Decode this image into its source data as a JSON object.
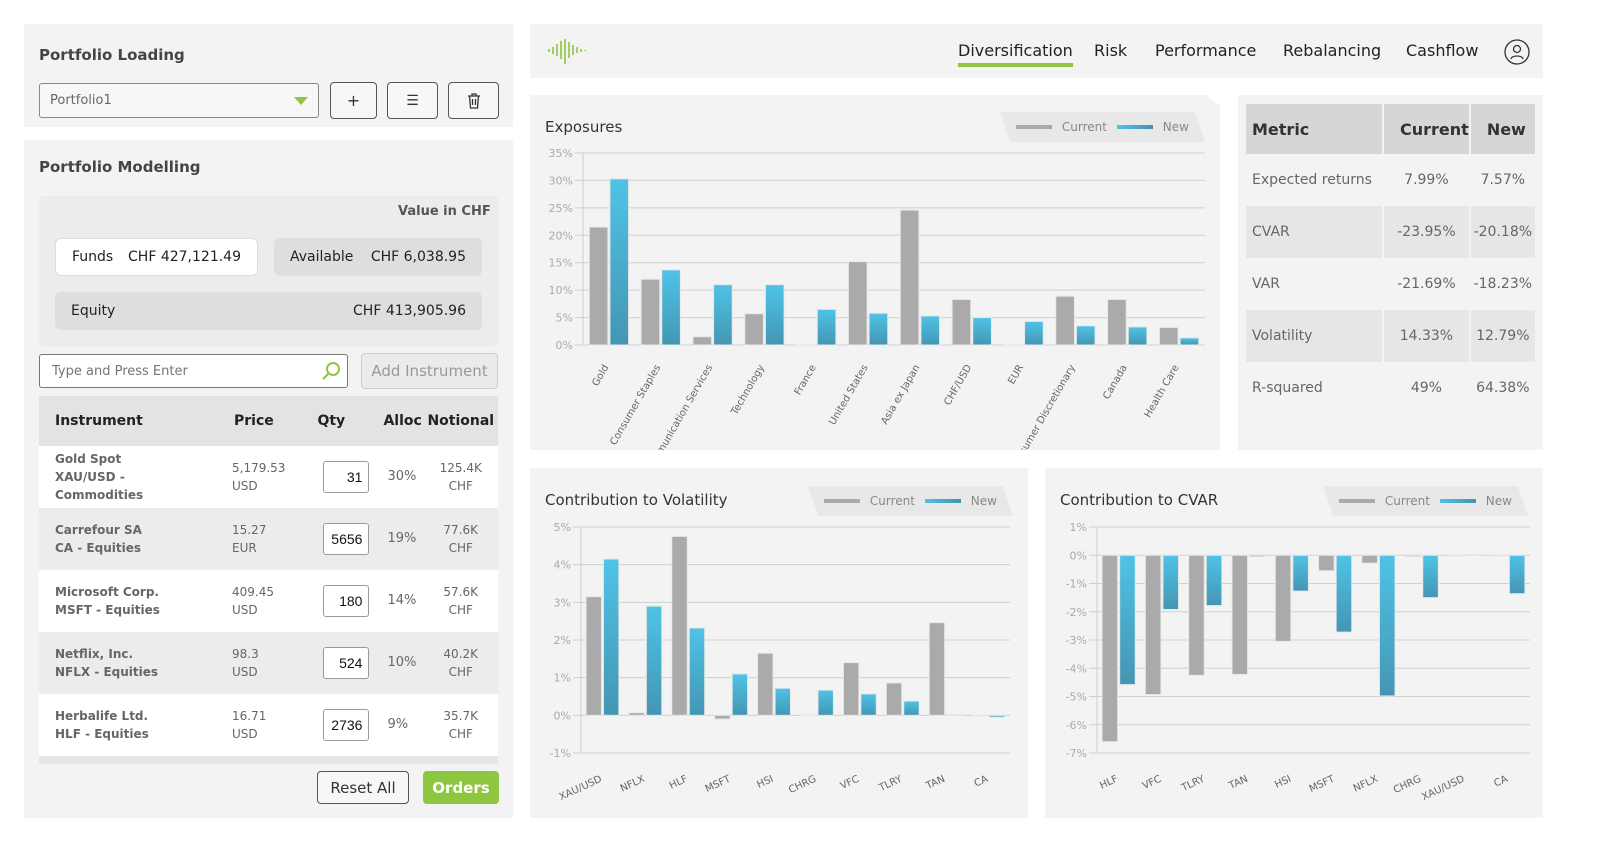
{
  "loading": {
    "title": "Portfolio Loading",
    "selected": "Portfolio1"
  },
  "modelling": {
    "title": "Portfolio Modelling",
    "value_label": "Value in CHF",
    "funds_label": "Funds",
    "funds_value": "CHF 427,121.49",
    "available_label": "Available",
    "available_value": "CHF 6,038.95",
    "equity_label": "Equity",
    "equity_value": "CHF 413,905.96",
    "search_placeholder": "Type and Press Enter",
    "add_label": "Add Instrument",
    "columns": [
      "Instrument",
      "Price",
      "Qty",
      "Alloc",
      "Notional"
    ],
    "rows": [
      {
        "name": "Gold Spot",
        "sub": "XAU/USD - Commodities",
        "price": "5,179.53",
        "ccy": "USD",
        "qty": "31",
        "alloc": "30%",
        "notional": "125.4K",
        "nccy": "CHF"
      },
      {
        "name": "Carrefour SA",
        "sub": "CA - Equities",
        "price": "15.27",
        "ccy": "EUR",
        "qty": "5656",
        "alloc": "19%",
        "notional": "77.6K",
        "nccy": "CHF"
      },
      {
        "name": "Microsoft Corp.",
        "sub": "MSFT - Equities",
        "price": "409.45",
        "ccy": "USD",
        "qty": "180",
        "alloc": "14%",
        "notional": "57.6K",
        "nccy": "CHF"
      },
      {
        "name": "Netflix, Inc.",
        "sub": "NFLX - Equities",
        "price": "98.3",
        "ccy": "USD",
        "qty": "524",
        "alloc": "10%",
        "notional": "40.2K",
        "nccy": "CHF"
      },
      {
        "name": "Herbalife Ltd.",
        "sub": "HLF - Equities",
        "price": "16.71",
        "ccy": "USD",
        "qty": "2736",
        "alloc": "9%",
        "notional": "35.7K",
        "nccy": "CHF"
      }
    ],
    "reset_label": "Reset All",
    "orders_label": "Orders"
  },
  "nav": {
    "tabs": [
      "Diversification",
      "Risk",
      "Performance",
      "Rebalancing",
      "Cashflow"
    ],
    "active": "Diversification"
  },
  "colors": {
    "accent": "#8dc63f",
    "current": "#aaaaaa",
    "new": "#4aaed0"
  },
  "legend": {
    "current": "Current",
    "new": "New"
  },
  "metrics": {
    "columns": [
      "Metric",
      "Current",
      "New"
    ],
    "rows": [
      [
        "Expected returns",
        "7.99%",
        "7.57%"
      ],
      [
        "CVAR",
        "-23.95%",
        "-20.18%"
      ],
      [
        "VAR",
        "-21.69%",
        "-18.23%"
      ],
      [
        "Volatility",
        "14.33%",
        "12.79%"
      ],
      [
        "R-squared",
        "49%",
        "64.38%"
      ]
    ]
  },
  "chart_data": [
    {
      "type": "bar",
      "title": "Exposures",
      "categories": [
        "Gold",
        "Consumer Staples",
        "Communication Services",
        "Technology",
        "France",
        "United States",
        "Asia ex Japan",
        "CHF/USD",
        "EUR",
        "Consumer Discretionary",
        "Canada",
        "Health Care"
      ],
      "series": [
        {
          "name": "Current",
          "values": [
            21.5,
            12,
            1.5,
            5.7,
            0,
            15.2,
            24.6,
            8.3,
            0,
            8.9,
            8.3,
            3.2
          ]
        },
        {
          "name": "New",
          "values": [
            30.3,
            13.7,
            11,
            11,
            6.5,
            5.8,
            5.3,
            5,
            4.3,
            3.5,
            3.3,
            1.3
          ]
        }
      ],
      "ylim": [
        0,
        35
      ],
      "yticks": [
        "0%",
        "5%",
        "10%",
        "15%",
        "20%",
        "25%",
        "30%",
        "35%"
      ],
      "grid": true,
      "legend": "top-right"
    },
    {
      "type": "bar",
      "title": "Contribution to Volatility",
      "categories": [
        "XAU/USD",
        "NFLX",
        "HLF",
        "MSFT",
        "HSI",
        "CHRG",
        "VFC",
        "TLRY",
        "TAN",
        "CA"
      ],
      "series": [
        {
          "name": "Current",
          "values": [
            3.15,
            0.07,
            4.75,
            -0.1,
            1.65,
            0.01,
            1.4,
            0.86,
            2.46,
            0
          ]
        },
        {
          "name": "New",
          "values": [
            4.15,
            2.9,
            2.32,
            1.1,
            0.72,
            0.67,
            0.57,
            0.38,
            0.02,
            -0.05
          ]
        }
      ],
      "ylim": [
        -1,
        5
      ],
      "yticks": [
        "-1%",
        "0%",
        "1%",
        "2%",
        "3%",
        "4%",
        "5%"
      ],
      "grid": true,
      "legend": "top-right"
    },
    {
      "type": "bar",
      "title": "Contribution to CVAR",
      "categories": [
        "HLF",
        "VFC",
        "TLRY",
        "TAN",
        "HSI",
        "MSFT",
        "NFLX",
        "CHRG",
        "XAU/USD",
        "CA"
      ],
      "series": [
        {
          "name": "Current",
          "values": [
            -6.6,
            -4.93,
            -4.25,
            -4.22,
            -3.05,
            -0.55,
            -0.28,
            -0.05,
            0,
            0
          ]
        },
        {
          "name": "New",
          "values": [
            -4.58,
            -1.92,
            -1.78,
            -0.05,
            -1.27,
            -2.72,
            -4.98,
            -1.5,
            0.03,
            -1.36
          ]
        }
      ],
      "ylim": [
        -7,
        1
      ],
      "yticks": [
        "-7%",
        "-6%",
        "-5%",
        "-4%",
        "-3%",
        "-2%",
        "-1%",
        "0%",
        "1%"
      ],
      "grid": true,
      "legend": "top-right"
    }
  ]
}
